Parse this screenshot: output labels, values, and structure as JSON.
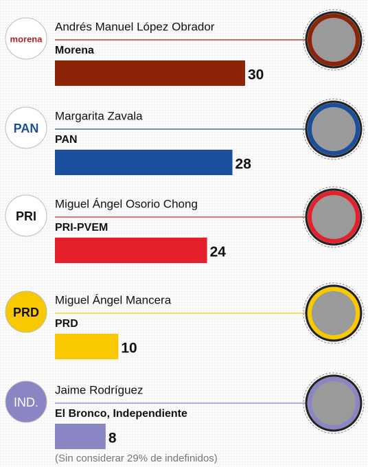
{
  "chart_data": {
    "type": "bar",
    "categories": [
      "Andrés Manuel López Obrador",
      "Margarita Zavala",
      "Miguel Ángel Osorio Chong",
      "Miguel Ángel Mancera",
      "Jaime Rodríguez"
    ],
    "parties": [
      "Morena",
      "PAN",
      "PRI-PVEM",
      "PRD",
      "El Bronco, Independiente"
    ],
    "logos": [
      "morena",
      "PAN",
      "PRI",
      "PRD",
      "IND."
    ],
    "values": [
      30,
      28,
      24,
      10,
      8
    ],
    "colors": [
      "#8b2408",
      "#1b4f9c",
      "#e6202a",
      "#f9c900",
      "#8a85c3"
    ],
    "note": "(Sin considerar 29% de indefinidos)"
  }
}
